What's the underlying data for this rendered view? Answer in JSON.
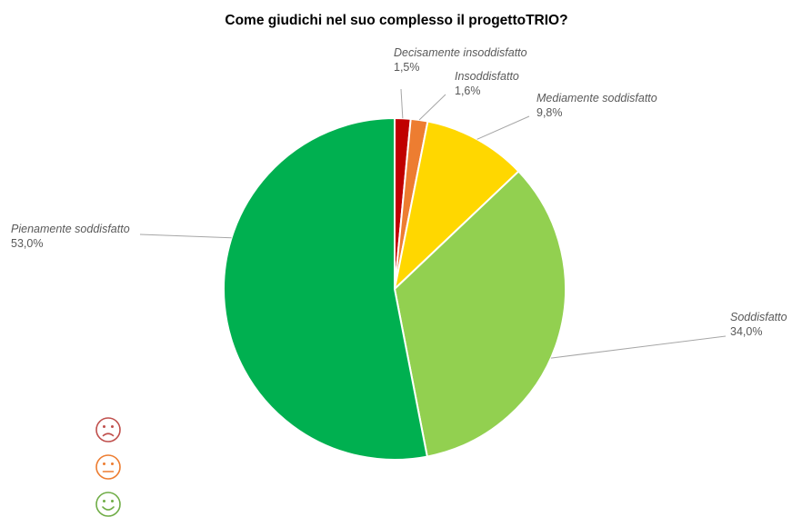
{
  "chart_data": {
    "type": "pie",
    "title": "Come giudichi nel suo complesso il progettoTRIO?",
    "slices": [
      {
        "label": "Decisamente insoddisfatto",
        "value": 1.5,
        "value_label": "1,5%",
        "color": "#c00000"
      },
      {
        "label": "Insoddisfatto",
        "value": 1.6,
        "value_label": "1,6%",
        "color": "#ed7d31"
      },
      {
        "label": "Mediamente soddisfatto",
        "value": 9.8,
        "value_label": "9,8%",
        "color": "#ffd700"
      },
      {
        "label": "Soddisfatto",
        "value": 34.0,
        "value_label": "34,0%",
        "color": "#92d050"
      },
      {
        "label": "Pienamente soddisfatto",
        "value": 53.0,
        "value_label": "53,0%",
        "color": "#00b050"
      }
    ],
    "start_angle_deg": 0,
    "direction": "clockwise",
    "legend": "none"
  },
  "faces": [
    {
      "icon": "frown-face-icon",
      "color": "#c0504d"
    },
    {
      "icon": "neutral-face-icon",
      "color": "#ed7d31"
    },
    {
      "icon": "smile-face-icon",
      "color": "#70ad47"
    }
  ]
}
